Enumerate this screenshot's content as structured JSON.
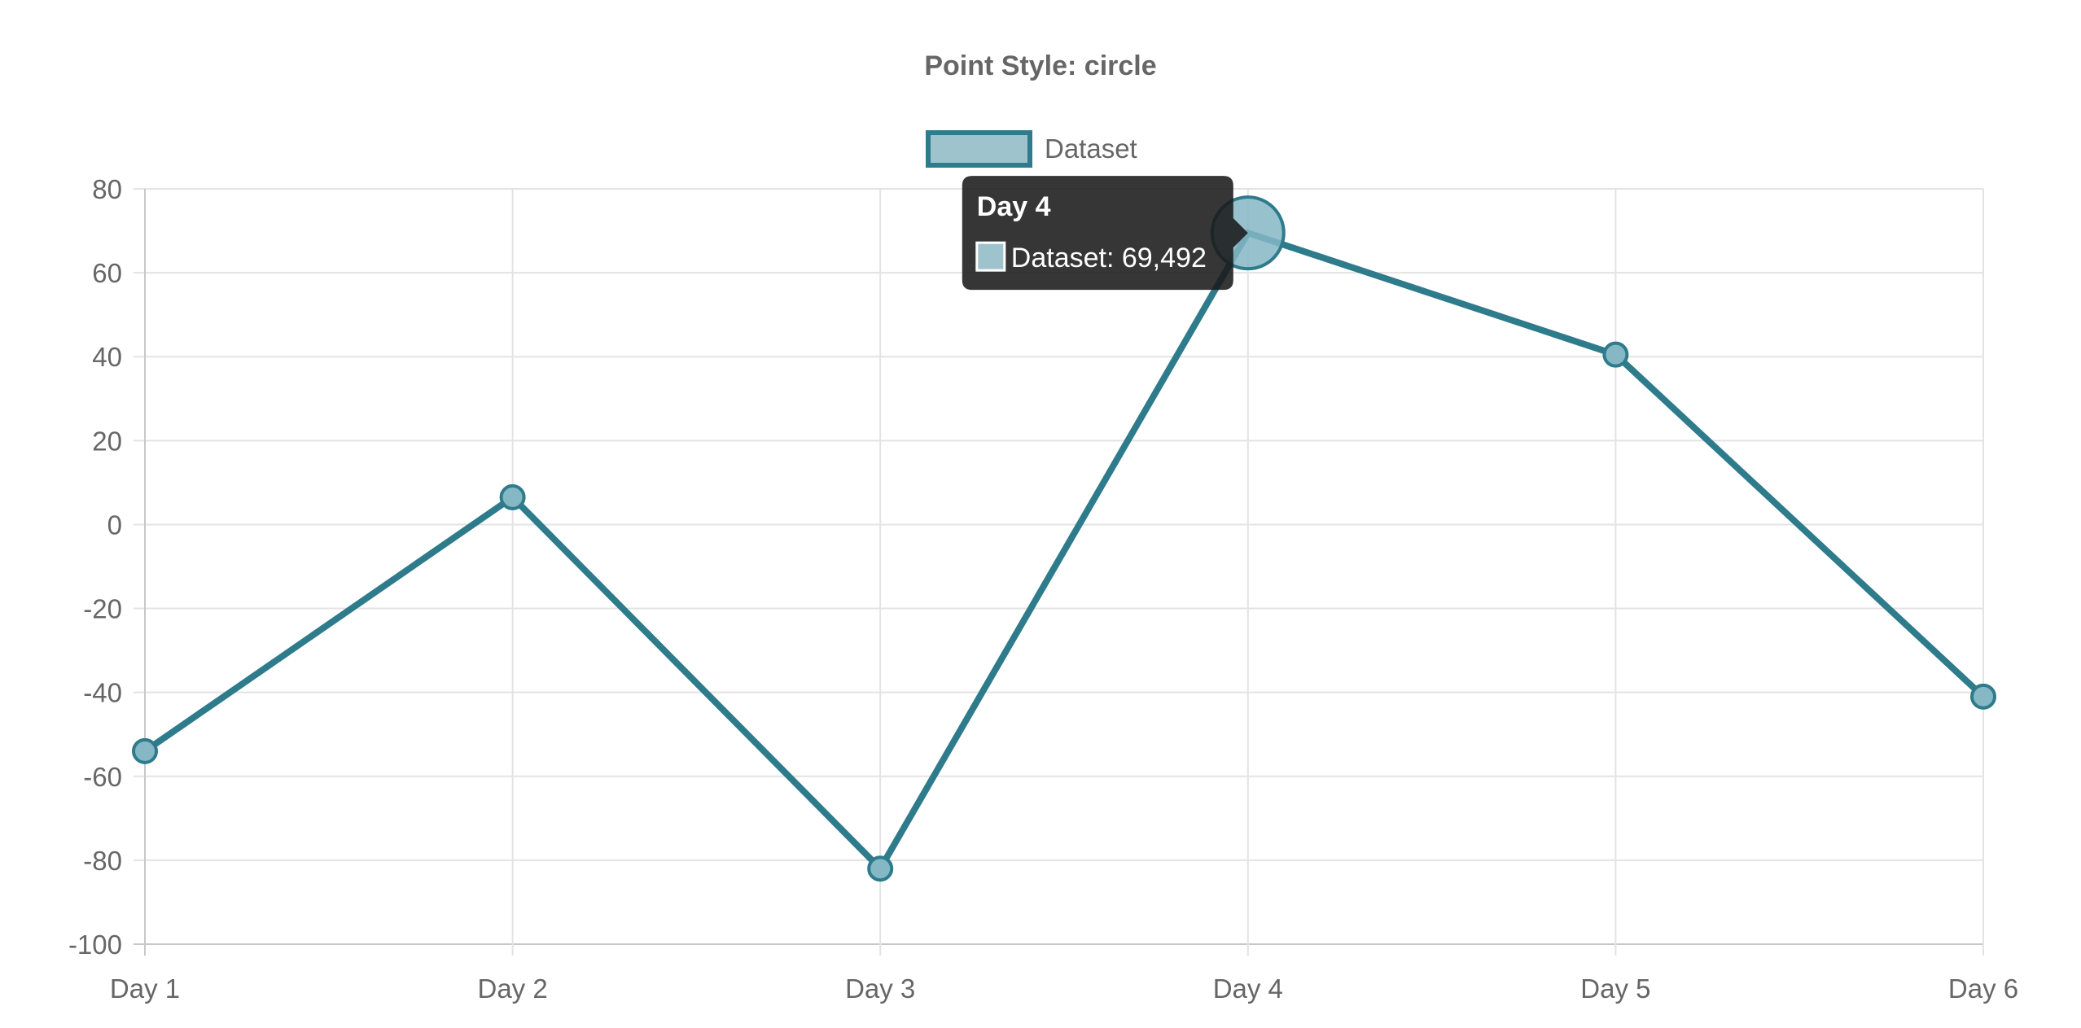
{
  "chart_data": {
    "type": "line",
    "title": "Point Style: circle",
    "categories": [
      "Day 1",
      "Day 2",
      "Day 3",
      "Day 4",
      "Day 5",
      "Day 6"
    ],
    "series": [
      {
        "name": "Dataset",
        "values": [
          -54,
          6.5,
          -82,
          69.492,
          40.5,
          -41
        ],
        "point_style": "circle"
      }
    ],
    "ylim": [
      -100,
      80
    ],
    "y_ticks": [
      "80",
      "60",
      "40",
      "20",
      "0",
      "-20",
      "-40",
      "-60",
      "-80",
      "-100"
    ],
    "grid": true,
    "legend_position": "top-center",
    "colors": {
      "line": "#2e7b8c",
      "point_fill": "#85b7c4",
      "legend_fill": "#9fc3cd",
      "tooltip_bg": "#1a1a1a",
      "grid": "#e3e3e3",
      "text": "#666666"
    },
    "tooltip": {
      "category_index": 3,
      "title": "Day 4",
      "label": "Dataset: 69,492"
    }
  }
}
